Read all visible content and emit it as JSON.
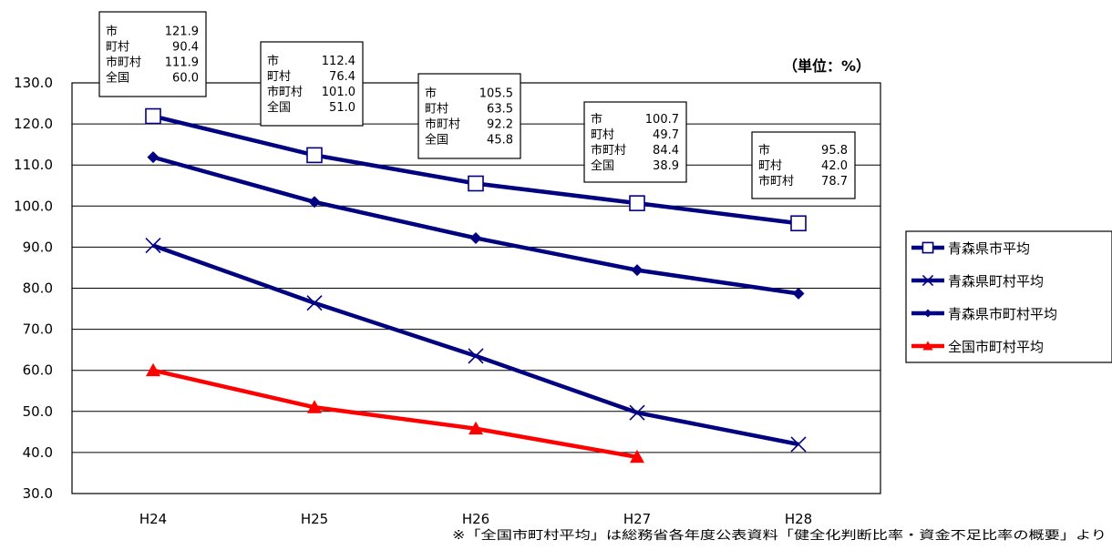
{
  "chart_data": {
    "type": "line",
    "unit_label": "（単位：%）",
    "note": "※「全国市町村平均」は総務省各年度公表資料「健全化判断比率・資金不足比率の概要」より",
    "categories": [
      "H24",
      "H25",
      "H26",
      "H27",
      "H28"
    ],
    "ylim": [
      30,
      130
    ],
    "yticks": [
      "30.0",
      "40.0",
      "50.0",
      "60.0",
      "70.0",
      "80.0",
      "90.0",
      "100.0",
      "110.0",
      "120.0",
      "130.0"
    ],
    "grid": true,
    "legend_position": "right",
    "series": [
      {
        "name": "青森県市平均",
        "values": [
          121.9,
          112.4,
          105.5,
          100.7,
          95.8
        ],
        "color": "#000080",
        "marker": "square"
      },
      {
        "name": "青森県町村平均",
        "values": [
          90.4,
          76.4,
          63.5,
          49.7,
          42.0
        ],
        "color": "#000080",
        "marker": "cross"
      },
      {
        "name": "青森県市町村平均",
        "values": [
          111.9,
          101.0,
          92.2,
          84.4,
          78.7
        ],
        "color": "#000080",
        "marker": "diamond"
      },
      {
        "name": "全国市町村平均",
        "values": [
          60.0,
          51.0,
          45.8,
          38.9,
          null
        ],
        "color": "#ff0000",
        "marker": "triangle"
      }
    ],
    "annotations": [
      {
        "category": "H24",
        "rows": [
          [
            "市",
            "121.9"
          ],
          [
            "町村",
            "90.4"
          ],
          [
            "市町村",
            "111.9"
          ],
          [
            "全国",
            "60.0"
          ]
        ]
      },
      {
        "category": "H25",
        "rows": [
          [
            "市",
            "112.4"
          ],
          [
            "町村",
            "76.4"
          ],
          [
            "市町村",
            "101.0"
          ],
          [
            "全国",
            "51.0"
          ]
        ]
      },
      {
        "category": "H26",
        "rows": [
          [
            "市",
            "105.5"
          ],
          [
            "町村",
            "63.5"
          ],
          [
            "市町村",
            "92.2"
          ],
          [
            "全国",
            "45.8"
          ]
        ]
      },
      {
        "category": "H27",
        "rows": [
          [
            "市",
            "100.7"
          ],
          [
            "町村",
            "49.7"
          ],
          [
            "市町村",
            "84.4"
          ],
          [
            "全国",
            "38.9"
          ]
        ]
      },
      {
        "category": "H28",
        "rows": [
          [
            "市",
            "95.8"
          ],
          [
            "町村",
            "42.0"
          ],
          [
            "市町村",
            "78.7"
          ]
        ]
      }
    ]
  }
}
